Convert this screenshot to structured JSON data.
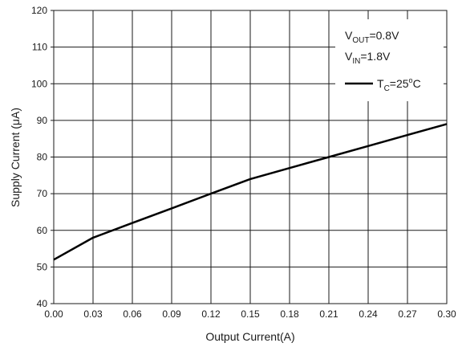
{
  "chart_data": {
    "type": "line",
    "xlabel": "Output Current(A)",
    "ylabel": "Supply Current (μA)",
    "xlim": [
      0,
      0.3
    ],
    "ylim": [
      40,
      120
    ],
    "x_ticks": [
      "0.00",
      "0.03",
      "0.06",
      "0.09",
      "0.12",
      "0.15",
      "0.18",
      "0.21",
      "0.24",
      "0.27",
      "0.30"
    ],
    "y_ticks": [
      "40",
      "50",
      "60",
      "70",
      "80",
      "90",
      "100",
      "110",
      "120"
    ],
    "grid": true,
    "legend_position": "top-right",
    "annotations": [
      {
        "main": "V",
        "sub": "OUT",
        "rest": "=0.8V"
      },
      {
        "main": "V",
        "sub": "IN",
        "rest": "=1.8V"
      }
    ],
    "series": [
      {
        "legend": {
          "main": "T",
          "sub": "C",
          "mid": "=25",
          "sup": "o",
          "rest": "C"
        },
        "color": "#000000",
        "x": [
          0.0,
          0.03,
          0.06,
          0.09,
          0.12,
          0.15,
          0.18,
          0.21,
          0.24,
          0.27,
          0.3
        ],
        "y": [
          52,
          58,
          62,
          66,
          70,
          74,
          77,
          80,
          83,
          86,
          89
        ]
      }
    ]
  }
}
